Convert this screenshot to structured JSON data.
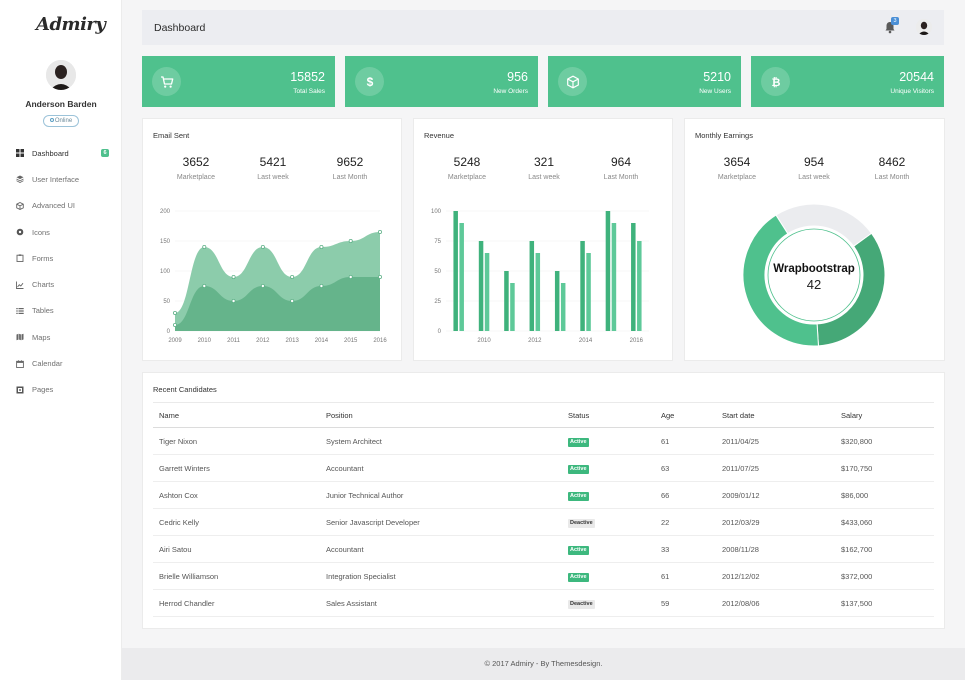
{
  "app": {
    "logo": "Admiry"
  },
  "sidebar": {
    "user_name": "Anderson Barden",
    "status": "Online",
    "items": [
      {
        "label": "Dashboard",
        "icon": "dashboard-icon",
        "badge": "6",
        "active": true
      },
      {
        "label": "User Interface",
        "icon": "layers-icon"
      },
      {
        "label": "Advanced UI",
        "icon": "cube-icon"
      },
      {
        "label": "Icons",
        "icon": "circle-icon"
      },
      {
        "label": "Forms",
        "icon": "clipboard-icon"
      },
      {
        "label": "Charts",
        "icon": "line-chart-icon"
      },
      {
        "label": "Tables",
        "icon": "table-list-icon"
      },
      {
        "label": "Maps",
        "icon": "map-icon"
      },
      {
        "label": "Calendar",
        "icon": "calendar-icon"
      },
      {
        "label": "Pages",
        "icon": "pages-icon"
      }
    ]
  },
  "header": {
    "title": "Dashboard",
    "notification_count": "3"
  },
  "stats": [
    {
      "value": "15852",
      "label": "Total Sales",
      "icon": "cart-icon"
    },
    {
      "value": "956",
      "label": "New Orders",
      "icon": "dollar-icon"
    },
    {
      "value": "5210",
      "label": "New Users",
      "icon": "cube-icon"
    },
    {
      "value": "20544",
      "label": "Unique Visitors",
      "icon": "bitcoin-icon"
    }
  ],
  "panels": {
    "email": {
      "title": "Email Sent",
      "kpis": [
        {
          "value": "3652",
          "label": "Marketplace"
        },
        {
          "value": "5421",
          "label": "Last week"
        },
        {
          "value": "9652",
          "label": "Last Month"
        }
      ]
    },
    "revenue": {
      "title": "Revenue",
      "kpis": [
        {
          "value": "5248",
          "label": "Marketplace"
        },
        {
          "value": "321",
          "label": "Last week"
        },
        {
          "value": "964",
          "label": "Last Month"
        }
      ]
    },
    "earnings": {
      "title": "Monthly Earnings",
      "kpis": [
        {
          "value": "3654",
          "label": "Marketplace"
        },
        {
          "value": "954",
          "label": "Last week"
        },
        {
          "value": "8462",
          "label": "Last Month"
        }
      ],
      "donut_label": "Wrapbootstrap",
      "donut_value": "42"
    }
  },
  "chart_data": [
    {
      "type": "area",
      "x": [
        "2009",
        "2010",
        "2011",
        "2012",
        "2013",
        "2014",
        "2015",
        "2016"
      ],
      "series": [
        {
          "values": [
            30,
            140,
            90,
            140,
            90,
            140,
            150,
            165
          ],
          "color": "#86c9a7"
        },
        {
          "values": [
            10,
            75,
            50,
            75,
            50,
            75,
            90,
            90
          ],
          "color": "#63b289"
        }
      ],
      "ylim": [
        0,
        200
      ],
      "yticks": [
        "0",
        "50",
        "100",
        "150",
        "200"
      ]
    },
    {
      "type": "bar",
      "categories": [
        "2009",
        "2010",
        "2011",
        "2012",
        "2013",
        "2014",
        "2015",
        "2016"
      ],
      "xticks": [
        "2010",
        "2012",
        "2014",
        "2016"
      ],
      "series": [
        {
          "values": [
            100,
            75,
            50,
            75,
            50,
            75,
            100,
            90
          ],
          "color": "#3fb27c"
        },
        {
          "values": [
            90,
            65,
            40,
            65,
            40,
            65,
            90,
            75
          ],
          "color": "#5ec999"
        }
      ],
      "ylim": [
        0,
        100
      ],
      "yticks": [
        "0",
        "25",
        "50",
        "75",
        "100"
      ]
    },
    {
      "type": "pie",
      "donut": true,
      "values": [
        42,
        24,
        34
      ],
      "colors": [
        "#4fc18d",
        "#ebecef",
        "#45a877"
      ]
    }
  ],
  "table": {
    "title": "Recent Candidates",
    "columns": [
      "Name",
      "Position",
      "Status",
      "Age",
      "Start date",
      "Salary"
    ],
    "rows": [
      [
        "Tiger Nixon",
        "System Architect",
        "Active",
        "61",
        "2011/04/25",
        "$320,800"
      ],
      [
        "Garrett Winters",
        "Accountant",
        "Active",
        "63",
        "2011/07/25",
        "$170,750"
      ],
      [
        "Ashton Cox",
        "Junior Technical Author",
        "Active",
        "66",
        "2009/01/12",
        "$86,000"
      ],
      [
        "Cedric Kelly",
        "Senior Javascript Developer",
        "Deactive",
        "22",
        "2012/03/29",
        "$433,060"
      ],
      [
        "Airi Satou",
        "Accountant",
        "Active",
        "33",
        "2008/11/28",
        "$162,700"
      ],
      [
        "Brielle Williamson",
        "Integration Specialist",
        "Active",
        "61",
        "2012/12/02",
        "$372,000"
      ],
      [
        "Herrod Chandler",
        "Sales Assistant",
        "Deactive",
        "59",
        "2012/08/06",
        "$137,500"
      ]
    ]
  },
  "footer": {
    "text": "© 2017 Admiry - By Themesdesign."
  },
  "colors": {
    "accent": "#4fc18d",
    "active_badge": "#3db87e",
    "deactive_badge": "#e9e9e9"
  }
}
